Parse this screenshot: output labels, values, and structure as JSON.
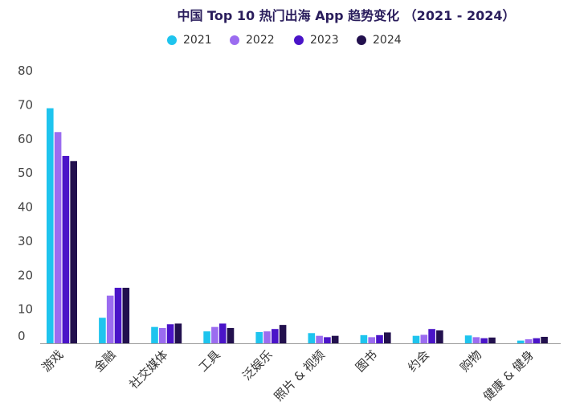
{
  "chart_data": {
    "type": "bar",
    "title": "中国 Top 10 热门出海 App 趋势变化 （2021 - 2024）",
    "categories": [
      "游戏",
      "金融",
      "社交媒体",
      "工具",
      "泛娱乐",
      "照片 & 视频",
      "图书",
      "约会",
      "购物",
      "健康 & 健身"
    ],
    "series": [
      {
        "name": "2021",
        "color": "#1ec4ee",
        "values": [
          69,
          7.5,
          4.8,
          3.5,
          3.3,
          3,
          2.4,
          2.2,
          2.3,
          0.8
        ]
      },
      {
        "name": "2022",
        "color": "#9b6cf0",
        "values": [
          62,
          14,
          4.5,
          4.8,
          3.5,
          2.2,
          1.8,
          2.5,
          1.8,
          1.2
        ]
      },
      {
        "name": "2023",
        "color": "#4a14c8",
        "values": [
          55,
          16.3,
          5.6,
          5.8,
          4.2,
          1.8,
          2.4,
          4.2,
          1.5,
          1.5
        ]
      },
      {
        "name": "2024",
        "color": "#22104e",
        "values": [
          53.5,
          16.3,
          5.8,
          4.5,
          5.4,
          2.2,
          3.2,
          3.8,
          1.7,
          1.9
        ]
      }
    ],
    "y_ticks": [
      "0",
      "10",
      "20",
      "30",
      "40",
      "50",
      "60",
      "70",
      "80"
    ],
    "ylim": [
      0,
      80
    ],
    "xlabel": "",
    "ylabel": "",
    "grid": false,
    "legend_position": "top-center"
  }
}
